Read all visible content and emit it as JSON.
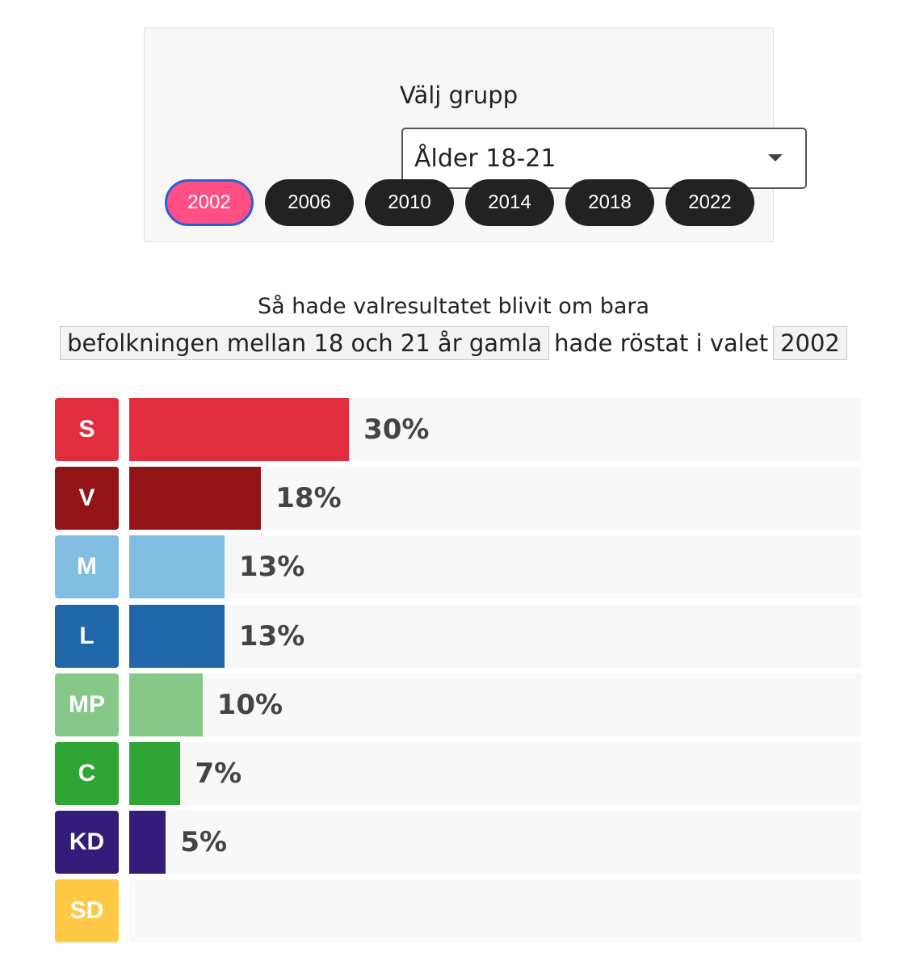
{
  "selector": {
    "title": "Välj grupp",
    "selected_group": "Ålder 18-21",
    "years": [
      "2002",
      "2006",
      "2010",
      "2014",
      "2018",
      "2022"
    ],
    "active_year": "2002"
  },
  "heading": {
    "line1": "Så hade valresultatet blivit om bara",
    "group_chip": "befolkningen mellan 18 och 21 år gamla",
    "middle": "hade röstat i valet",
    "year_chip": "2002"
  },
  "chart_data": {
    "type": "bar",
    "orientation": "horizontal",
    "categories": [
      "S",
      "V",
      "M",
      "L",
      "MP",
      "C",
      "KD",
      "SD"
    ],
    "values": [
      30,
      18,
      13,
      13,
      10,
      7,
      5,
      0
    ],
    "labels": [
      "30%",
      "18%",
      "13%",
      "13%",
      "10%",
      "7%",
      "5%",
      ""
    ],
    "colors": [
      "#e02e3f",
      "#931416",
      "#80bde0",
      "#1f67a8",
      "#85c887",
      "#2ea534",
      "#331c7a",
      "#ffc845"
    ],
    "xlim": [
      0,
      100
    ]
  }
}
